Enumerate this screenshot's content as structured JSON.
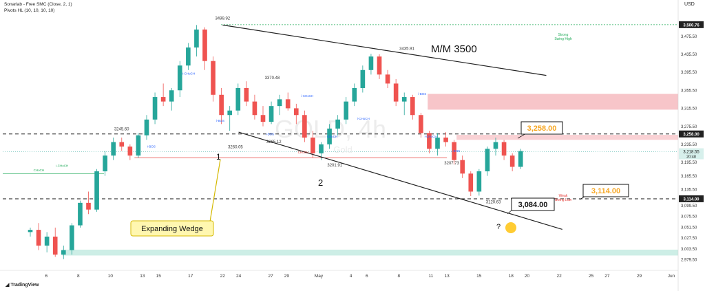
{
  "header": {
    "line1": "Sonarlab - Free SMC (Close, 2, 1)",
    "line2": "Pivots HL (10, 10, 10, 10)",
    "currency": "USD",
    "brand": "TradingView"
  },
  "watermark": {
    "symbol": "GOLD, 4h",
    "name": "Gold"
  },
  "colors": {
    "up": "#26a69a",
    "down": "#ef5350",
    "supply": "#f7c5c9",
    "demand": "#cdeee6",
    "orange": "#f6a623",
    "green": "#22ab5a",
    "red": "#e53935",
    "blue": "#2962ff",
    "callout_bg": "#fff7b0"
  },
  "chart_data": {
    "type": "candlestick",
    "instrument": "GOLD",
    "timeframe": "4h",
    "ylim": [
      2955,
      3525
    ],
    "x_day_range": [
      0,
      34
    ],
    "yticks": [
      2979.5,
      3003.5,
      3027.5,
      3051.5,
      3075.5,
      3099.5,
      3135.5,
      3165.5,
      3195.5,
      3235.5,
      3275.5,
      3315.5,
      3355.5,
      3395.5,
      3435.5,
      3475.5
    ],
    "ytick_labels": [
      "2,979.50",
      "3,003.50",
      "3,027.50",
      "3,051.50",
      "3,075.50",
      "3,099.50",
      "3,135.50",
      "3,165.50",
      "3,195.50",
      "3,235.50",
      "3,275.50",
      "3,315.50",
      "3,355.50",
      "3,395.50",
      "3,435.50",
      "3,475.50"
    ],
    "xticks": [
      {
        "day": 1,
        "label": "6"
      },
      {
        "day": 3,
        "label": "8"
      },
      {
        "day": 5,
        "label": "10"
      },
      {
        "day": 7,
        "label": "13"
      },
      {
        "day": 8,
        "label": "15"
      },
      {
        "day": 10,
        "label": "17"
      },
      {
        "day": 12,
        "label": "22"
      },
      {
        "day": 13,
        "label": "24"
      },
      {
        "day": 15,
        "label": "27"
      },
      {
        "day": 16,
        "label": "29"
      },
      {
        "day": 18,
        "label": "May"
      },
      {
        "day": 20,
        "label": "4"
      },
      {
        "day": 21,
        "label": "6"
      },
      {
        "day": 23,
        "label": "8"
      },
      {
        "day": 25,
        "label": "11"
      },
      {
        "day": 26,
        "label": "13"
      },
      {
        "day": 28,
        "label": "15"
      },
      {
        "day": 30,
        "label": "18"
      },
      {
        "day": 31,
        "label": "20"
      },
      {
        "day": 33,
        "label": "22"
      },
      {
        "day": 35,
        "label": "25"
      },
      {
        "day": 36,
        "label": "27"
      },
      {
        "day": 38,
        "label": "29"
      },
      {
        "day": 40,
        "label": "Jun"
      }
    ],
    "candles_ohlc": [
      [
        3040,
        3050,
        3030,
        3045
      ],
      [
        3045,
        3060,
        3000,
        3010
      ],
      [
        3010,
        3040,
        2995,
        3030
      ],
      [
        3030,
        3050,
        2985,
        2990
      ],
      [
        2990,
        3010,
        2980,
        3000
      ],
      [
        3000,
        3060,
        2990,
        3055
      ],
      [
        3055,
        3110,
        3050,
        3105
      ],
      [
        3105,
        3130,
        3080,
        3090
      ],
      [
        3090,
        3180,
        3085,
        3175
      ],
      [
        3175,
        3220,
        3165,
        3210
      ],
      [
        3210,
        3250,
        3200,
        3240
      ],
      [
        3240,
        3250,
        3220,
        3230
      ],
      [
        3230,
        3235,
        3200,
        3210
      ],
      [
        3210,
        3260,
        3205,
        3255
      ],
      [
        3255,
        3300,
        3245,
        3290
      ],
      [
        3290,
        3350,
        3280,
        3340
      ],
      [
        3340,
        3370,
        3320,
        3330
      ],
      [
        3330,
        3360,
        3310,
        3355
      ],
      [
        3355,
        3420,
        3340,
        3410
      ],
      [
        3410,
        3460,
        3400,
        3450
      ],
      [
        3450,
        3500,
        3430,
        3490
      ],
      [
        3490,
        3495,
        3400,
        3420
      ],
      [
        3420,
        3430,
        3330,
        3345
      ],
      [
        3345,
        3360,
        3280,
        3300
      ],
      [
        3300,
        3320,
        3265,
        3310
      ],
      [
        3310,
        3370,
        3300,
        3360
      ],
      [
        3360,
        3375,
        3320,
        3330
      ],
      [
        3330,
        3345,
        3290,
        3300
      ],
      [
        3300,
        3320,
        3275,
        3285
      ],
      [
        3285,
        3330,
        3280,
        3320
      ],
      [
        3320,
        3345,
        3300,
        3335
      ],
      [
        3335,
        3350,
        3310,
        3315
      ],
      [
        3315,
        3325,
        3280,
        3300
      ],
      [
        3300,
        3310,
        3240,
        3250
      ],
      [
        3250,
        3265,
        3205,
        3215
      ],
      [
        3215,
        3240,
        3200,
        3235
      ],
      [
        3235,
        3280,
        3225,
        3270
      ],
      [
        3270,
        3300,
        3255,
        3290
      ],
      [
        3290,
        3340,
        3280,
        3330
      ],
      [
        3330,
        3370,
        3320,
        3360
      ],
      [
        3360,
        3410,
        3350,
        3400
      ],
      [
        3400,
        3436,
        3390,
        3430
      ],
      [
        3430,
        3435,
        3380,
        3390
      ],
      [
        3390,
        3400,
        3360,
        3370
      ],
      [
        3370,
        3380,
        3320,
        3330
      ],
      [
        3330,
        3350,
        3300,
        3340
      ],
      [
        3340,
        3345,
        3290,
        3300
      ],
      [
        3300,
        3305,
        3250,
        3260
      ],
      [
        3260,
        3265,
        3215,
        3225
      ],
      [
        3225,
        3260,
        3210,
        3250
      ],
      [
        3250,
        3262,
        3230,
        3240
      ],
      [
        3240,
        3245,
        3190,
        3200
      ],
      [
        3200,
        3210,
        3160,
        3170
      ],
      [
        3170,
        3175,
        3120,
        3130
      ],
      [
        3130,
        3180,
        3121,
        3175
      ],
      [
        3175,
        3230,
        3165,
        3225
      ],
      [
        3225,
        3250,
        3210,
        3240
      ],
      [
        3240,
        3245,
        3200,
        3210
      ],
      [
        3210,
        3215,
        3175,
        3185
      ],
      [
        3185,
        3225,
        3180,
        3220
      ]
    ],
    "levels": [
      {
        "price": 3500.76,
        "label": "3,500.76",
        "kind": "strong-high"
      },
      {
        "price": 3258.0,
        "label": "3,258.00",
        "kind": "resistance"
      },
      {
        "price": 3218.55,
        "label": "3,218.55",
        "kind": "last-price"
      },
      {
        "price": 3114.0,
        "label": "3,114.00",
        "kind": "support"
      }
    ],
    "price_labels": [
      "3499.92",
      "3435.91",
      "3370.48",
      "3245.60",
      "3265.12",
      "3260.05",
      "3201.91",
      "3207.73",
      "3120.63"
    ],
    "annotations": {
      "mm": "M/M 3500",
      "wave1": "1",
      "wave2": "2",
      "expanding_wedge": "Expanding Wedge",
      "callout_3258": "3,258.00",
      "callout_3114": "3,114.00",
      "callout_3084": "3,084.00",
      "question": "?",
      "strong_high": "Strong",
      "swing_high": "Swing High",
      "weak_low": "Weak",
      "weak_low2": "Swing Low",
      "chochs": [
        "CHoCH",
        "i-CHoCH",
        "i-BOS",
        "CHoCH",
        "i-CHoCH",
        "i-BOS",
        "i-CHoCH",
        "CHoCH",
        "i-CHoCH",
        "i-BOS",
        "i-CHoCH",
        "i-BOS",
        "i-BOS"
      ],
      "countdown": "20:48"
    }
  }
}
